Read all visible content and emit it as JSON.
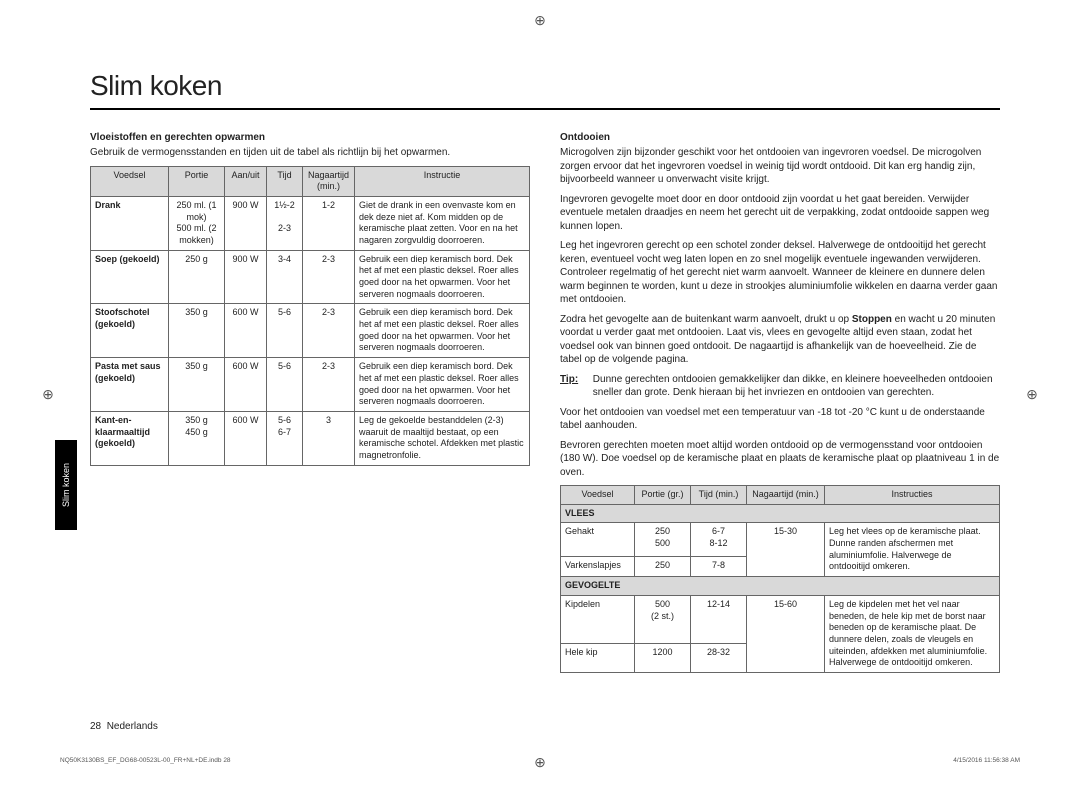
{
  "title": "Slim koken",
  "sideTab": "Slim koken",
  "footer": {
    "pageNum": "28",
    "lang": "Nederlands",
    "indb": "NQ50K3130BS_EF_DG68-00523L-00_FR+NL+DE.indb   28",
    "timestamp": "4/15/2016   11:56:38 AM"
  },
  "left": {
    "heading": "Vloeistoffen en gerechten opwarmen",
    "intro": "Gebruik de vermogensstanden en tijden uit de tabel als richtlijn bij het opwarmen.",
    "headers": [
      "Voedsel",
      "Portie",
      "Aan/uit",
      "Tijd",
      "Nagaartijd (min.)",
      "Instructie"
    ],
    "rows": [
      {
        "food": "Drank",
        "portion": "250 ml. (1 mok)\n500 ml. (2 mokken)",
        "power": "900 W",
        "time": "1½-2\n\n2-3",
        "stand": "1-2",
        "instr": "Giet de drank in een ovenvaste kom en dek deze niet af. Kom midden op de keramische plaat zetten. Voor en na het nagaren zorgvuldig doorroeren."
      },
      {
        "food": "Soep (gekoeld)",
        "portion": "250 g",
        "power": "900 W",
        "time": "3-4",
        "stand": "2-3",
        "instr": "Gebruik een diep keramisch bord. Dek het af met een plastic deksel. Roer alles goed door na het opwarmen. Voor het serveren nogmaals doorroeren."
      },
      {
        "food": "Stoofschotel (gekoeld)",
        "portion": "350 g",
        "power": "600 W",
        "time": "5-6",
        "stand": "2-3",
        "instr": "Gebruik een diep keramisch bord. Dek het af met een plastic deksel. Roer alles goed door na het opwarmen. Voor het serveren nogmaals doorroeren."
      },
      {
        "food": "Pasta met saus (gekoeld)",
        "portion": "350 g",
        "power": "600 W",
        "time": "5-6",
        "stand": "2-3",
        "instr": "Gebruik een diep keramisch bord. Dek het af met een plastic deksel. Roer alles goed door na het opwarmen. Voor het serveren nogmaals doorroeren."
      },
      {
        "food": "Kant-en-klaarmaaltijd (gekoeld)",
        "portion": "350 g\n450 g",
        "power": "600 W",
        "time": "5-6\n6-7",
        "stand": "3",
        "instr": "Leg de gekoelde bestanddelen (2-3) waaruit de maaltijd bestaat, op een keramische schotel. Afdekken met plastic magnetronfolie."
      }
    ]
  },
  "right": {
    "heading": "Ontdooien",
    "p1": "Microgolven zijn bijzonder geschikt voor het ontdooien van ingevroren voedsel. De microgolven zorgen ervoor dat het ingevroren voedsel in weinig tijd wordt ontdooid. Dit kan erg handig zijn, bijvoorbeeld wanneer u onverwacht visite krijgt.",
    "p2": "Ingevroren gevogelte moet door en door ontdooid zijn voordat u het gaat bereiden. Verwijder eventuele metalen draadjes en neem het gerecht uit de verpakking, zodat ontdooide sappen weg kunnen lopen.",
    "p3": "Leg het ingevroren gerecht op een schotel zonder deksel. Halverwege de ontdooitijd het gerecht keren, eventueel vocht weg laten lopen en zo snel mogelijk eventuele ingewanden verwijderen. Controleer regelmatig of het gerecht niet warm aanvoelt. Wanneer de kleinere en dunnere delen warm beginnen te worden, kunt u deze in strookjes aluminiumfolie wikkelen en daarna verder gaan met ontdooien.",
    "p4a": "Zodra het gevogelte aan de buitenkant warm aanvoelt, drukt u op ",
    "p4bold": "Stoppen",
    "p4b": " en wacht u 20 minuten voordat u verder gaat met ontdooien. Laat vis, vlees en gevogelte altijd even staan, zodat het voedsel ook van binnen goed ontdooit. De nagaartijd is afhankelijk van de hoeveelheid. Zie de tabel op de volgende pagina.",
    "tipLabel": "Tip:",
    "tip": "Dunne gerechten ontdooien gemakkelijker dan dikke, en kleinere hoeveelheden ontdooien sneller dan grote. Denk hieraan bij het invriezen en ontdooien van gerechten.",
    "p5": "Voor het ontdooien van voedsel met een temperatuur van -18 tot -20 °C kunt u de onderstaande tabel aanhouden.",
    "p6": "Bevroren gerechten moeten moet altijd worden ontdooid op de vermogensstand voor ontdooien (180 W). Doe voedsel op de keramische plaat en plaats de keramische plaat op plaatniveau 1 in de oven.",
    "headers": [
      "Voedsel",
      "Portie (gr.)",
      "Tijd (min.)",
      "Nagaartijd (min.)",
      "Instructies"
    ],
    "section1": "VLEES",
    "rows1": [
      {
        "food": "Gehakt",
        "portion": "250\n500",
        "time": "6-7\n8-12",
        "stand": "15-30",
        "instr": "Leg het vlees op de keramische plaat. Dunne randen afschermen met aluminiumfolie. Halverwege de ontdooitijd omkeren.",
        "span": 2
      },
      {
        "food": "Varkenslapjes",
        "portion": "250",
        "time": "7-8",
        "stand": "",
        "instr": ""
      }
    ],
    "section2": "GEVOGELTE",
    "rows2": [
      {
        "food": "Kipdelen",
        "portion": "500\n(2 st.)",
        "time": "12-14",
        "stand": "15-60",
        "instr": "Leg de kipdelen met het vel naar beneden, de hele kip met de borst naar beneden op de keramische plaat. De dunnere delen, zoals de vleugels en uiteinden, afdekken met aluminiumfolie. Halverwege de ontdooitijd omkeren.",
        "span": 2
      },
      {
        "food": "Hele kip",
        "portion": "1200",
        "time": "28-32",
        "stand": "",
        "instr": ""
      }
    ]
  }
}
